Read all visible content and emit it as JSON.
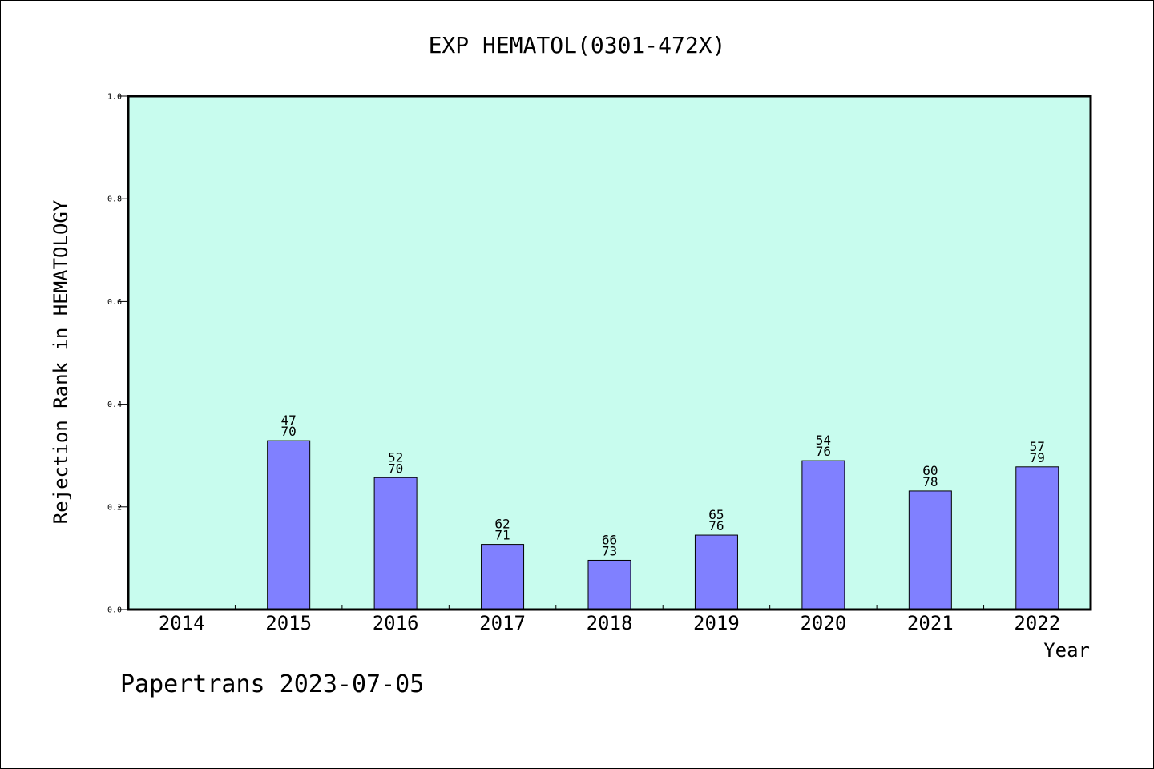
{
  "chart_data": {
    "type": "bar",
    "title": "EXP HEMATOL(0301-472X)",
    "xlabel": "Year",
    "ylabel": "Rejection Rank in HEMATOLOGY",
    "categories": [
      "2014",
      "2015",
      "2016",
      "2017",
      "2018",
      "2019",
      "2020",
      "2021",
      "2022"
    ],
    "values": [
      null,
      0.329,
      0.257,
      0.127,
      0.096,
      0.145,
      0.29,
      0.231,
      0.278
    ],
    "label_top": [
      "",
      "47",
      "52",
      "62",
      "66",
      "65",
      "54",
      "60",
      "57"
    ],
    "label_bottom": [
      "",
      "70",
      "70",
      "71",
      "73",
      "76",
      "76",
      "78",
      "79"
    ],
    "ylim": [
      0,
      1.0
    ],
    "yticks": [
      "0.0",
      "0.2",
      "0.4",
      "0.6",
      "0.8",
      "1.0"
    ],
    "colors": {
      "plot_bg": "#c8fcee",
      "bar": "#8080ff"
    }
  },
  "footer": "Papertrans 2023-07-05"
}
